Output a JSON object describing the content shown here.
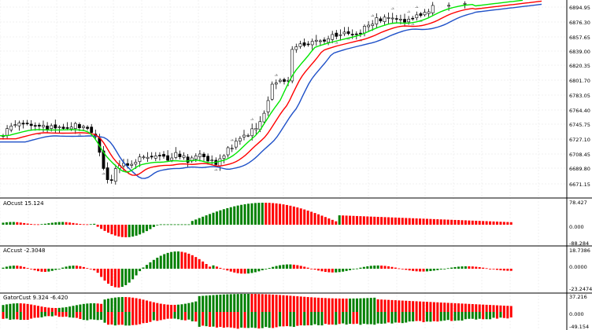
{
  "colors": {
    "background": "#ffffff",
    "grid": "#e6e6e6",
    "separator": "#000000",
    "bull": "#008000",
    "bear": "#ff0000",
    "jaw": "#1e50c8",
    "teeth": "#ff0000",
    "lips": "#00e600",
    "candle_outline": "#000000",
    "candle_up_fill": "#ffffff",
    "candle_down_fill": "#000000",
    "fractal": "#808080"
  },
  "main": {
    "price_ticks": [
      "6894.95",
      "6876.30",
      "6857.65",
      "6839.00",
      "6820.35",
      "6801.70",
      "6783.05",
      "6764.40",
      "6745.75",
      "6727.10",
      "6708.45",
      "6689.80",
      "6671.15"
    ],
    "ylim": [
      6664,
      6900
    ]
  },
  "panes": [
    {
      "label": "AOcust 15.124",
      "ticks": [
        "78.427",
        "0.000",
        "-88.284"
      ]
    },
    {
      "label": "ACcust -2.3048",
      "ticks": [
        "18.7386",
        "0.0000",
        "-23.2474"
      ]
    },
    {
      "label": "GatorCust 9.324 -6.420",
      "ticks": [
        "37.216",
        "0.000",
        "-49.154"
      ]
    }
  ]
}
